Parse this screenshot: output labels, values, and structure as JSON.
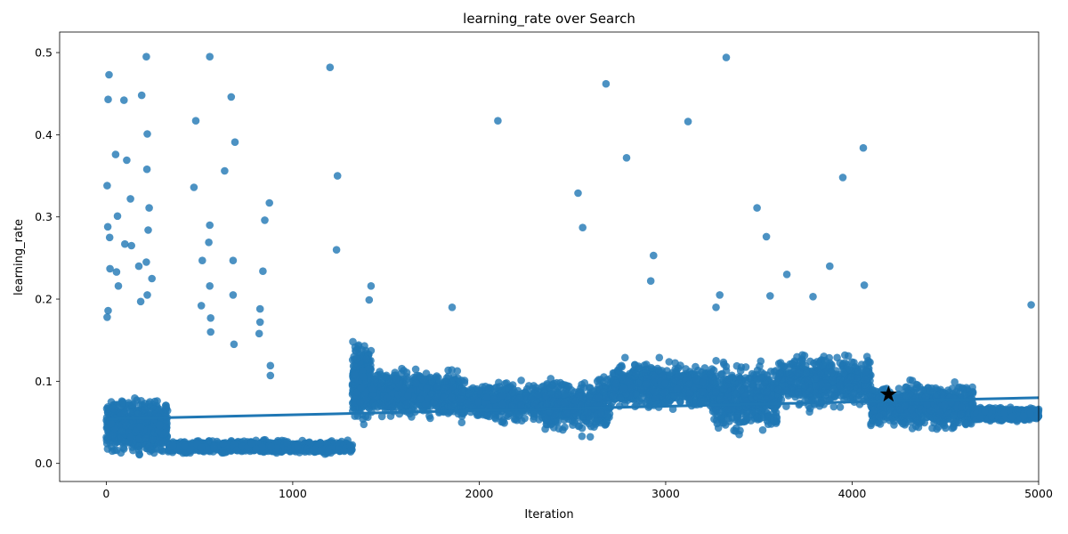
{
  "chart_data": {
    "type": "scatter",
    "title": "learning_rate over Search",
    "xlabel": "Iteration",
    "ylabel": "learning_rate",
    "xlim": [
      -250,
      5000
    ],
    "ylim": [
      -0.022,
      0.525
    ],
    "xticks": [
      0,
      1000,
      2000,
      3000,
      4000,
      5000
    ],
    "yticks": [
      0.0,
      0.1,
      0.2,
      0.3,
      0.4,
      0.5
    ],
    "grid": false,
    "legend": "none",
    "point_color": "#1f77b4",
    "trend_line": {
      "x": [
        0,
        5000
      ],
      "y": [
        0.054,
        0.08
      ]
    },
    "best_marker": {
      "x": 4195,
      "y": 0.084,
      "color": "#000000"
    },
    "series_segments": [
      {
        "x0": 0,
        "x1": 330,
        "center": 0.045,
        "spread": 0.04,
        "count": 700
      },
      {
        "x0": 330,
        "x1": 1320,
        "center": 0.02,
        "spread": 0.01,
        "count": 900
      },
      {
        "x0": 1320,
        "x1": 1420,
        "center": 0.1,
        "spread": 0.06,
        "count": 300
      },
      {
        "x0": 1420,
        "x1": 1900,
        "center": 0.085,
        "spread": 0.035,
        "count": 700
      },
      {
        "x0": 1900,
        "x1": 2350,
        "center": 0.075,
        "spread": 0.03,
        "count": 500
      },
      {
        "x0": 2350,
        "x1": 2700,
        "center": 0.07,
        "spread": 0.04,
        "count": 450
      },
      {
        "x0": 2700,
        "x1": 3250,
        "center": 0.095,
        "spread": 0.035,
        "count": 700
      },
      {
        "x0": 3250,
        "x1": 3600,
        "center": 0.08,
        "spread": 0.05,
        "count": 500
      },
      {
        "x0": 3600,
        "x1": 4100,
        "center": 0.1,
        "spread": 0.04,
        "count": 550
      },
      {
        "x0": 4100,
        "x1": 4650,
        "center": 0.07,
        "spread": 0.035,
        "count": 700
      },
      {
        "x0": 4650,
        "x1": 5000,
        "center": 0.06,
        "spread": 0.01,
        "count": 600
      }
    ],
    "outliers": [
      {
        "x": 10,
        "y": 0.443
      },
      {
        "x": 15,
        "y": 0.473
      },
      {
        "x": 5,
        "y": 0.338
      },
      {
        "x": 8,
        "y": 0.288
      },
      {
        "x": 18,
        "y": 0.275
      },
      {
        "x": 20,
        "y": 0.237
      },
      {
        "x": 10,
        "y": 0.186
      },
      {
        "x": 5,
        "y": 0.178
      },
      {
        "x": 50,
        "y": 0.376
      },
      {
        "x": 60,
        "y": 0.301
      },
      {
        "x": 55,
        "y": 0.233
      },
      {
        "x": 65,
        "y": 0.216
      },
      {
        "x": 95,
        "y": 0.442
      },
      {
        "x": 110,
        "y": 0.369
      },
      {
        "x": 130,
        "y": 0.322
      },
      {
        "x": 100,
        "y": 0.267
      },
      {
        "x": 135,
        "y": 0.265
      },
      {
        "x": 190,
        "y": 0.448
      },
      {
        "x": 215,
        "y": 0.495
      },
      {
        "x": 220,
        "y": 0.401
      },
      {
        "x": 218,
        "y": 0.358
      },
      {
        "x": 230,
        "y": 0.311
      },
      {
        "x": 225,
        "y": 0.284
      },
      {
        "x": 215,
        "y": 0.245
      },
      {
        "x": 175,
        "y": 0.24
      },
      {
        "x": 245,
        "y": 0.225
      },
      {
        "x": 220,
        "y": 0.205
      },
      {
        "x": 185,
        "y": 0.197
      },
      {
        "x": 480,
        "y": 0.417
      },
      {
        "x": 470,
        "y": 0.336
      },
      {
        "x": 555,
        "y": 0.495
      },
      {
        "x": 555,
        "y": 0.29
      },
      {
        "x": 550,
        "y": 0.269
      },
      {
        "x": 515,
        "y": 0.247
      },
      {
        "x": 555,
        "y": 0.216
      },
      {
        "x": 510,
        "y": 0.192
      },
      {
        "x": 560,
        "y": 0.177
      },
      {
        "x": 560,
        "y": 0.16
      },
      {
        "x": 635,
        "y": 0.356
      },
      {
        "x": 670,
        "y": 0.446
      },
      {
        "x": 690,
        "y": 0.391
      },
      {
        "x": 680,
        "y": 0.247
      },
      {
        "x": 680,
        "y": 0.205
      },
      {
        "x": 685,
        "y": 0.145
      },
      {
        "x": 850,
        "y": 0.296
      },
      {
        "x": 875,
        "y": 0.317
      },
      {
        "x": 840,
        "y": 0.234
      },
      {
        "x": 825,
        "y": 0.188
      },
      {
        "x": 825,
        "y": 0.172
      },
      {
        "x": 820,
        "y": 0.158
      },
      {
        "x": 880,
        "y": 0.119
      },
      {
        "x": 880,
        "y": 0.107
      },
      {
        "x": 1200,
        "y": 0.482
      },
      {
        "x": 1240,
        "y": 0.35
      },
      {
        "x": 1235,
        "y": 0.26
      },
      {
        "x": 2100,
        "y": 0.417
      },
      {
        "x": 2530,
        "y": 0.329
      },
      {
        "x": 2555,
        "y": 0.287
      },
      {
        "x": 2680,
        "y": 0.462
      },
      {
        "x": 2790,
        "y": 0.372
      },
      {
        "x": 2935,
        "y": 0.253
      },
      {
        "x": 2920,
        "y": 0.222
      },
      {
        "x": 3120,
        "y": 0.416
      },
      {
        "x": 3325,
        "y": 0.494
      },
      {
        "x": 3490,
        "y": 0.311
      },
      {
        "x": 3540,
        "y": 0.276
      },
      {
        "x": 3650,
        "y": 0.23
      },
      {
        "x": 3560,
        "y": 0.204
      },
      {
        "x": 3880,
        "y": 0.24
      },
      {
        "x": 3790,
        "y": 0.203
      },
      {
        "x": 3950,
        "y": 0.348
      },
      {
        "x": 4060,
        "y": 0.384
      },
      {
        "x": 4065,
        "y": 0.217
      },
      {
        "x": 4960,
        "y": 0.193
      },
      {
        "x": 1420,
        "y": 0.216
      },
      {
        "x": 1410,
        "y": 0.199
      },
      {
        "x": 1855,
        "y": 0.19
      },
      {
        "x": 3290,
        "y": 0.205
      },
      {
        "x": 3270,
        "y": 0.19
      }
    ]
  }
}
